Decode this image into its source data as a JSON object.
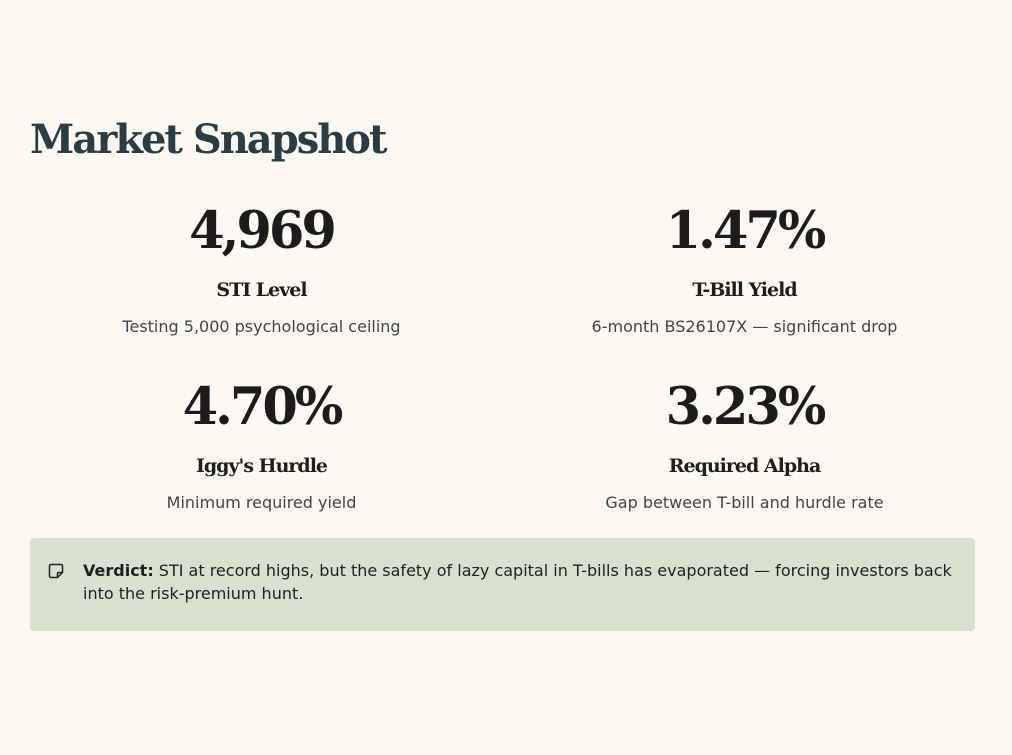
{
  "page": {
    "title": "Market Snapshot"
  },
  "stats": [
    {
      "value": "4,969",
      "label": "STI Level",
      "description": "Testing 5,000 psychological ceiling"
    },
    {
      "value": "1.47%",
      "label": "T-Bill Yield",
      "description": "6-month BS26107X — significant drop"
    },
    {
      "value": "4.70%",
      "label": "Iggy's Hurdle",
      "description": "Minimum required yield"
    },
    {
      "value": "3.23%",
      "label": "Required Alpha",
      "description": "Gap between T-bill and hurdle rate"
    }
  ],
  "verdict": {
    "icon": "note-icon",
    "label": "Verdict:",
    "text": " STI at record highs, but the safety of lazy capital in T-bills has evaporated — forcing investors back into the risk-premium hunt."
  },
  "colors": {
    "background": "#fdf8f2",
    "title": "#2a3d42",
    "verdict_background": "#d9e0d0"
  }
}
